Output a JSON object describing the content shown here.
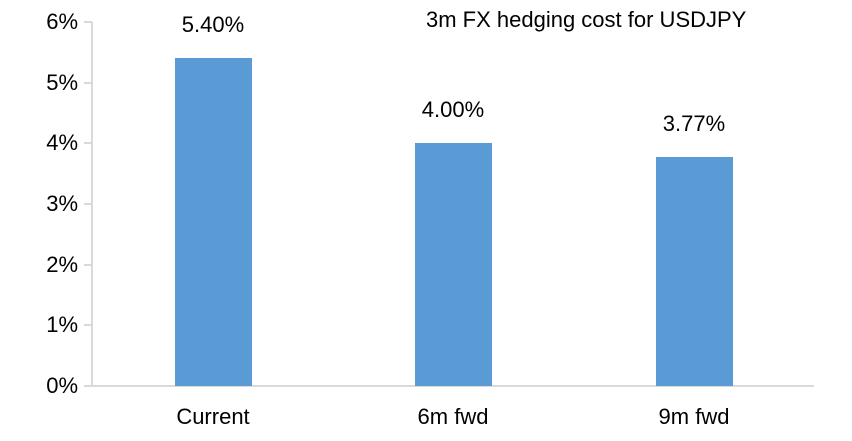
{
  "chart_data": {
    "type": "bar",
    "title": "3m FX hedging cost for USDJPY",
    "categories": [
      "Current",
      "6m fwd",
      "9m fwd"
    ],
    "values": [
      5.4,
      4.0,
      3.77
    ],
    "value_labels": [
      "5.40%",
      "4.00%",
      "3.77%"
    ],
    "xlabel": "",
    "ylabel": "",
    "ylim": [
      0,
      6
    ],
    "ytick_step": 1,
    "ytick_labels": [
      "0%",
      "1%",
      "2%",
      "3%",
      "4%",
      "5%",
      "6%"
    ],
    "grid": false,
    "legend_position": "none",
    "bar_color": "#5B9BD5",
    "axis_color": "#D9D9D9",
    "text_color": "#000000"
  }
}
